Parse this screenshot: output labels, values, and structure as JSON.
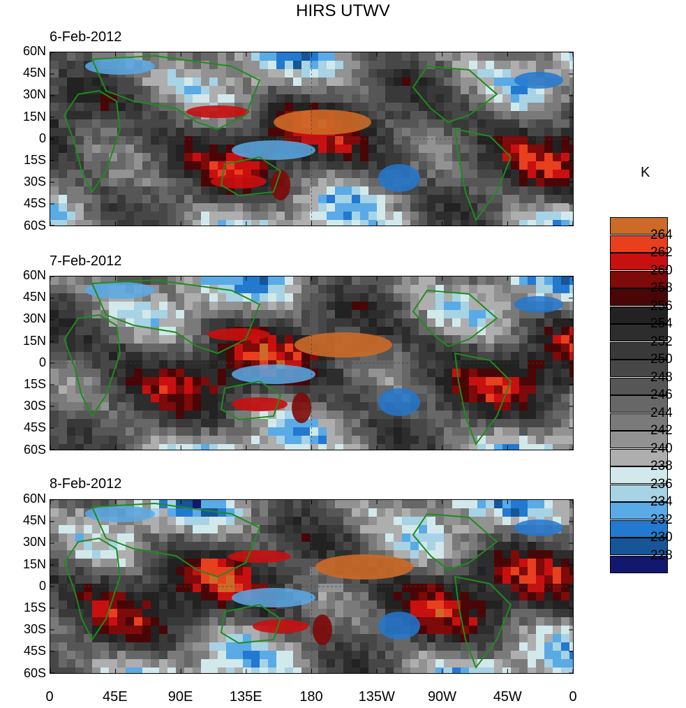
{
  "title": "HIRS UTWV",
  "colorbar": {
    "units": "K",
    "levels": [
      "264",
      "262",
      "260",
      "258",
      "256",
      "254",
      "252",
      "250",
      "248",
      "246",
      "244",
      "242",
      "240",
      "238",
      "236",
      "234",
      "232",
      "230",
      "228"
    ],
    "colors": [
      "#cc6a28",
      "#e8401e",
      "#c91010",
      "#7e0a0a",
      "#4a0606",
      "#222222",
      "#2d2d2d",
      "#393939",
      "#474747",
      "#565656",
      "#676767",
      "#7a7a7a",
      "#929292",
      "#aeaeae",
      "#d2e9ec",
      "#a7d3e4",
      "#5aaae6",
      "#2378cf",
      "#155598",
      "#12186e"
    ]
  },
  "panels": [
    {
      "date": "6-Feb-2012"
    },
    {
      "date": "7-Feb-2012"
    },
    {
      "date": "8-Feb-2012"
    }
  ],
  "lat_ticks": [
    "60N",
    "45N",
    "30N",
    "15N",
    "0",
    "15S",
    "30S",
    "45S",
    "60S"
  ],
  "lon_ticks": [
    "0",
    "45E",
    "90E",
    "135E",
    "180",
    "135W",
    "90W",
    "45W",
    "0"
  ],
  "colors": {
    "coastline": "#1e8c1e",
    "frame": "#000000"
  }
}
